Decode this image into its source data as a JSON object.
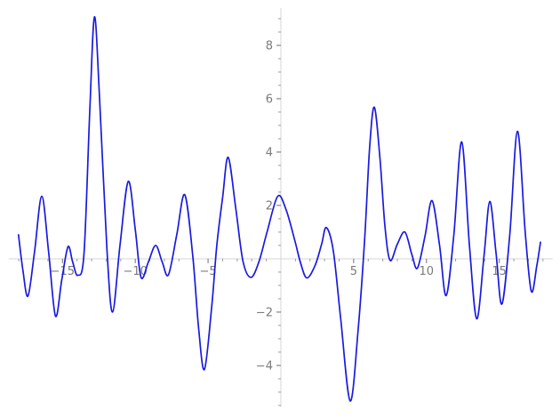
{
  "figure": {
    "background": "#ffffff"
  },
  "chart_data": {
    "type": "line",
    "title": "",
    "xlabel": "",
    "ylabel": "",
    "grid": false,
    "legend": "none",
    "background": "#ffffff",
    "axis_line_color": "#d6d6d6",
    "major_tick_color": "#6f6f6f",
    "minor_tick_color": "#9b9b9b",
    "label_color": "#7a7a7a",
    "xlim": [
      -19.29,
      19.17
    ],
    "ylim": [
      -5.97,
      9.7
    ],
    "x_axis": {
      "line_range": [
        -18.68,
        18.66
      ],
      "major_ticks": [
        {
          "value": -15,
          "label": "−15"
        },
        {
          "value": -10,
          "label": "−10"
        },
        {
          "value": -5,
          "label": "−5"
        },
        {
          "value": 5,
          "label": "5"
        },
        {
          "value": 10,
          "label": "10"
        },
        {
          "value": 15,
          "label": "15"
        }
      ],
      "minor_tick_start": -18,
      "minor_tick_end": 18,
      "minor_tick_step": 1
    },
    "y_axis": {
      "line_range": [
        -5.56,
        9.4
      ],
      "major_ticks": [
        {
          "value": 8,
          "label": "8"
        },
        {
          "value": 6,
          "label": "6"
        },
        {
          "value": 4,
          "label": "4"
        },
        {
          "value": 2,
          "label": "2"
        },
        {
          "value": -2,
          "label": "−2"
        },
        {
          "value": -4,
          "label": "−4"
        }
      ],
      "minor_tick_start": -5.5,
      "minor_tick_end": 9,
      "minor_tick_step": 0.5
    },
    "series": [
      {
        "color": "#1a1ae0",
        "points": [
          [
            -18.02,
            0.9
          ],
          [
            -17.72,
            -0.42
          ],
          [
            -17.37,
            -1.4
          ],
          [
            -16.92,
            0.25
          ],
          [
            -16.42,
            2.34
          ],
          [
            -15.95,
            0.25
          ],
          [
            -15.48,
            -2.15
          ],
          [
            -15.05,
            -0.8
          ],
          [
            -14.62,
            0.45
          ],
          [
            -14.3,
            -0.12
          ],
          [
            -13.95,
            -0.62
          ],
          [
            -13.52,
            0.2
          ],
          [
            -13.12,
            5.6
          ],
          [
            -12.8,
            9.07
          ],
          [
            -12.45,
            6.0
          ],
          [
            -11.95,
            0.4
          ],
          [
            -11.56,
            -2.0
          ],
          [
            -11.05,
            0.5
          ],
          [
            -10.48,
            2.9
          ],
          [
            -10.0,
            1.1
          ],
          [
            -9.6,
            -0.7
          ],
          [
            -9.1,
            -0.12
          ],
          [
            -8.6,
            0.5
          ],
          [
            -8.15,
            -0.12
          ],
          [
            -7.72,
            -0.6
          ],
          [
            -7.15,
            0.9
          ],
          [
            -6.6,
            2.4
          ],
          [
            -6.05,
            0.1
          ],
          [
            -5.65,
            -2.6
          ],
          [
            -5.25,
            -4.15
          ],
          [
            -4.75,
            -1.8
          ],
          [
            -4.4,
            0.5
          ],
          [
            -4.0,
            2.3
          ],
          [
            -3.62,
            3.8
          ],
          [
            -3.1,
            1.9
          ],
          [
            -2.6,
            -0.1
          ],
          [
            -2.05,
            -0.7
          ],
          [
            -1.5,
            -0.1
          ],
          [
            -0.95,
            1.0
          ],
          [
            -0.22,
            2.34
          ],
          [
            0.35,
            1.85
          ],
          [
            0.95,
            0.7
          ],
          [
            1.35,
            -0.15
          ],
          [
            1.78,
            -0.72
          ],
          [
            2.35,
            -0.25
          ],
          [
            2.8,
            0.55
          ],
          [
            3.12,
            1.17
          ],
          [
            3.6,
            0.3
          ],
          [
            4.1,
            -2.2
          ],
          [
            4.76,
            -5.33
          ],
          [
            5.3,
            -2.7
          ],
          [
            5.75,
            0.7
          ],
          [
            6.1,
            4.2
          ],
          [
            6.42,
            5.68
          ],
          [
            6.8,
            3.8
          ],
          [
            7.15,
            1.2
          ],
          [
            7.5,
            -0.06
          ],
          [
            8.0,
            0.55
          ],
          [
            8.52,
            1.0
          ],
          [
            9.0,
            0.15
          ],
          [
            9.38,
            -0.35
          ],
          [
            9.9,
            0.85
          ],
          [
            10.38,
            2.18
          ],
          [
            10.9,
            0.5
          ],
          [
            11.35,
            -1.38
          ],
          [
            11.88,
            0.9
          ],
          [
            12.42,
            4.38
          ],
          [
            12.95,
            0.5
          ],
          [
            13.45,
            -2.25
          ],
          [
            13.95,
            0.1
          ],
          [
            14.35,
            2.15
          ],
          [
            14.78,
            0.2
          ],
          [
            15.18,
            -1.7
          ],
          [
            15.72,
            0.9
          ],
          [
            16.25,
            4.78
          ],
          [
            16.78,
            1.0
          ],
          [
            17.2,
            -1.22
          ],
          [
            17.58,
            -0.25
          ],
          [
            17.83,
            0.62
          ]
        ]
      }
    ]
  }
}
